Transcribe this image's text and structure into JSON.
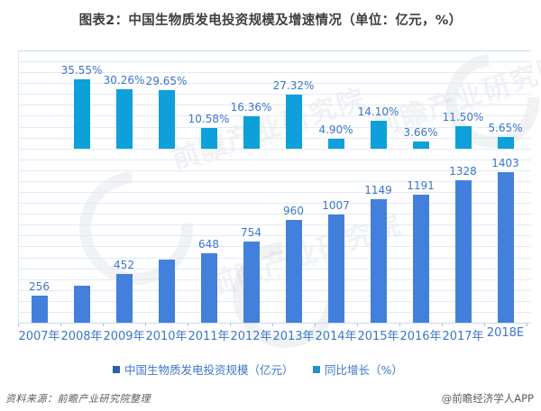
{
  "title": "图表2：中国生物质发电投资规模及增速情况（单位：亿元，%）",
  "chart_data": {
    "type": "bar",
    "categories": [
      "2007年",
      "2008年",
      "2009年",
      "2010年",
      "2011年",
      "2012年",
      "2013年",
      "2014年",
      "2015年",
      "2016年",
      "2017年",
      "2018E"
    ],
    "series": [
      {
        "name": "中国生物质发电投资规模（亿元）",
        "axis": "left",
        "color": "#4380db",
        "values": [
          256,
          347,
          452,
          586,
          648,
          754,
          960,
          1007,
          1149,
          1191,
          1328,
          1403
        ],
        "data_labels": [
          "256",
          "",
          "452",
          "",
          "648",
          "754",
          "960",
          "1007",
          "1149",
          "1191",
          "1328",
          "1403"
        ]
      },
      {
        "name": "同比增长（%）",
        "axis": "right",
        "color": "#0da0db",
        "values": [
          null,
          35.55,
          30.26,
          29.65,
          10.58,
          16.36,
          27.32,
          4.9,
          14.1,
          3.66,
          11.5,
          5.65
        ],
        "data_labels": [
          "",
          "35.55%",
          "30.26%",
          "29.65%",
          "10.58%",
          "16.36%",
          "27.32%",
          "4.90%",
          "14.10%",
          "3.66%",
          "11.50%",
          "5.65%"
        ]
      }
    ],
    "grid": true,
    "legend_position": "bottom",
    "xlabel": "",
    "ylabel": ""
  },
  "legend": {
    "items": [
      {
        "label": "中国生物质发电投资规模（亿元）",
        "marker_color": "#2b5fa7"
      },
      {
        "label": "同比增长（%）",
        "marker_color": "#2491cf"
      }
    ]
  },
  "footer": {
    "source": "资料来源：前瞻产业研究院整理",
    "credit": "@前瞻经济学人APP"
  },
  "watermark": {
    "text": "前瞻产业研究院",
    "subtext": "www.qianzhan.com"
  },
  "colors": {
    "investment_bar": "#4380db",
    "growth_bar": "#0da0db",
    "label_text": "#3c76cb",
    "title_text": "#3f3f3f",
    "gridline": "#e1ebf8",
    "axis_line": "#c8daf0",
    "footer_text": "#5b5b5b"
  }
}
